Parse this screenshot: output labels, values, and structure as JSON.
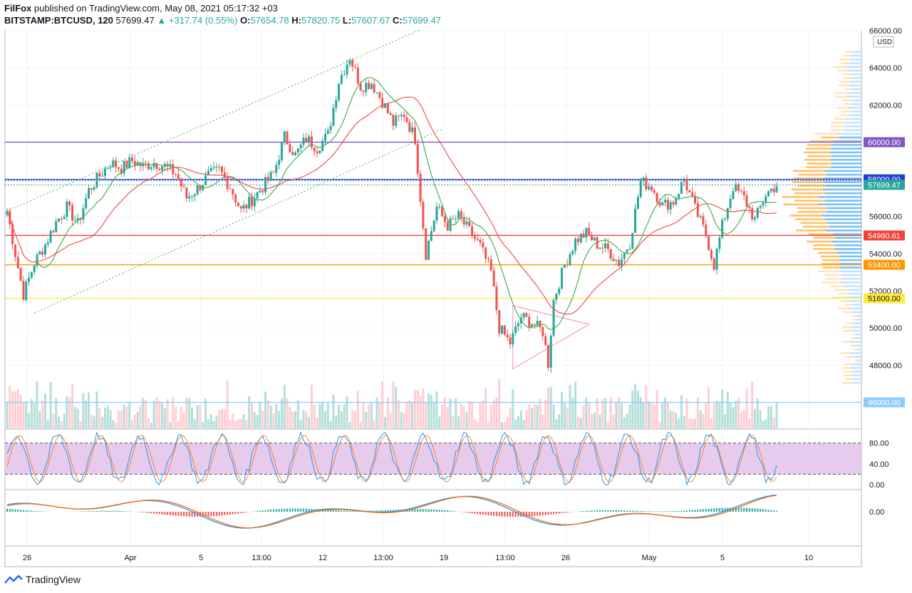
{
  "header": {
    "author": "FilFox",
    "published_text": "published on TradingView.com, May 08, 2021 05:17:32 +03",
    "symbol": "BITSTAMP:BTCUSD, 120",
    "last": "57699.47",
    "change": "+317.74 (0.55%)",
    "o_label": "O:",
    "o": "57654.78",
    "h_label": "H:",
    "h": "57820.75",
    "l_label": "L:",
    "l": "57607.67",
    "c_label": "C:",
    "c": "57699.47"
  },
  "currency": "USD",
  "footer": {
    "brand": "TradingView"
  },
  "colors": {
    "up": "#26a69a",
    "down": "#ef5350",
    "ma_green": "#4caf50",
    "ma_red": "#ef5350",
    "level_purple": "#7e57c2",
    "level_blue": "#1e3fd6",
    "level_red": "#f44336",
    "level_orange": "#ff9800",
    "level_yellow": "#ffeb3b",
    "level_lightblue": "#90caf9",
    "stoch_band": "#e1bee7",
    "macd_line": "#2196f3",
    "signal_line": "#ff6d00"
  },
  "chart_data": {
    "type": "candlestick",
    "y_ticks": [
      "66000.00",
      "64000.00",
      "62000.00",
      "60000.00",
      "58000.00",
      "56000.00",
      "54000.00",
      "52000.00",
      "50000.00",
      "48000.00",
      "46000.00"
    ],
    "y_tick_values": [
      66000,
      64000,
      62000,
      60000,
      58000,
      56000,
      54000,
      52000,
      50000,
      48000,
      46000
    ],
    "ylim": [
      44600,
      66000
    ],
    "x_ticks": [
      "26",
      "Apr",
      "5",
      "13:00",
      "12",
      "13:00",
      "19",
      "13:00",
      "26",
      "May",
      "5",
      "10"
    ],
    "price_labels": [
      {
        "text": "60000.00",
        "value": 60000,
        "color": "#7e57c2"
      },
      {
        "text": "58000.00",
        "value": 58000,
        "color": "#1e3fd6"
      },
      {
        "text": "57699.47",
        "value": 57699.47,
        "color": "#26a69a"
      },
      {
        "text": "54980.61",
        "value": 54980.61,
        "color": "#f44336"
      },
      {
        "text": "53400.00",
        "value": 53400,
        "color": "#ff9800"
      },
      {
        "text": "51600.00",
        "value": 51600,
        "color": "#ffeb3b"
      },
      {
        "text": "46000.00",
        "value": 46000,
        "color": "#90caf9"
      }
    ],
    "close_series": [
      {
        "x": 0,
        "y": 56300
      },
      {
        "x": 3,
        "y": 54000
      },
      {
        "x": 6,
        "y": 51800
      },
      {
        "x": 10,
        "y": 53500
      },
      {
        "x": 14,
        "y": 54500
      },
      {
        "x": 18,
        "y": 55700
      },
      {
        "x": 22,
        "y": 56500
      },
      {
        "x": 26,
        "y": 55600
      },
      {
        "x": 30,
        "y": 57400
      },
      {
        "x": 34,
        "y": 58200
      },
      {
        "x": 38,
        "y": 58900
      },
      {
        "x": 42,
        "y": 58600
      },
      {
        "x": 46,
        "y": 59000
      },
      {
        "x": 50,
        "y": 58700
      },
      {
        "x": 54,
        "y": 58900
      },
      {
        "x": 58,
        "y": 58700
      },
      {
        "x": 62,
        "y": 58300
      },
      {
        "x": 66,
        "y": 57000
      },
      {
        "x": 70,
        "y": 57500
      },
      {
        "x": 74,
        "y": 58200
      },
      {
        "x": 78,
        "y": 58500
      },
      {
        "x": 82,
        "y": 57600
      },
      {
        "x": 86,
        "y": 56300
      },
      {
        "x": 90,
        "y": 56900
      },
      {
        "x": 94,
        "y": 57600
      },
      {
        "x": 98,
        "y": 58300
      },
      {
        "x": 102,
        "y": 60300
      },
      {
        "x": 106,
        "y": 59300
      },
      {
        "x": 110,
        "y": 60200
      },
      {
        "x": 114,
        "y": 59700
      },
      {
        "x": 118,
        "y": 60400
      },
      {
        "x": 122,
        "y": 63300
      },
      {
        "x": 126,
        "y": 64600
      },
      {
        "x": 130,
        "y": 63000
      },
      {
        "x": 134,
        "y": 63200
      },
      {
        "x": 138,
        "y": 62200
      },
      {
        "x": 142,
        "y": 61000
      },
      {
        "x": 146,
        "y": 61500
      },
      {
        "x": 150,
        "y": 60200
      },
      {
        "x": 152,
        "y": 57000
      },
      {
        "x": 154,
        "y": 54000
      },
      {
        "x": 158,
        "y": 56500
      },
      {
        "x": 162,
        "y": 55500
      },
      {
        "x": 166,
        "y": 56000
      },
      {
        "x": 170,
        "y": 55200
      },
      {
        "x": 174,
        "y": 54400
      },
      {
        "x": 178,
        "y": 53000
      },
      {
        "x": 181,
        "y": 50000
      },
      {
        "x": 185,
        "y": 49200
      },
      {
        "x": 189,
        "y": 50600
      },
      {
        "x": 193,
        "y": 50300
      },
      {
        "x": 197,
        "y": 49800
      },
      {
        "x": 199,
        "y": 48100
      },
      {
        "x": 201,
        "y": 51500
      },
      {
        "x": 205,
        "y": 53400
      },
      {
        "x": 209,
        "y": 54700
      },
      {
        "x": 213,
        "y": 55100
      },
      {
        "x": 217,
        "y": 54500
      },
      {
        "x": 221,
        "y": 54200
      },
      {
        "x": 225,
        "y": 53500
      },
      {
        "x": 229,
        "y": 54600
      },
      {
        "x": 233,
        "y": 57900
      },
      {
        "x": 237,
        "y": 57600
      },
      {
        "x": 241,
        "y": 56600
      },
      {
        "x": 245,
        "y": 56800
      },
      {
        "x": 249,
        "y": 58000
      },
      {
        "x": 253,
        "y": 56400
      },
      {
        "x": 257,
        "y": 55000
      },
      {
        "x": 260,
        "y": 53400
      },
      {
        "x": 263,
        "y": 55500
      },
      {
        "x": 267,
        "y": 57600
      },
      {
        "x": 271,
        "y": 57000
      },
      {
        "x": 275,
        "y": 55800
      },
      {
        "x": 279,
        "y": 57200
      },
      {
        "x": 283,
        "y": 57700
      }
    ],
    "stoch_levels": [
      "80.00",
      "40.00",
      "0.00"
    ],
    "macd_levels": [
      "0.00"
    ]
  }
}
